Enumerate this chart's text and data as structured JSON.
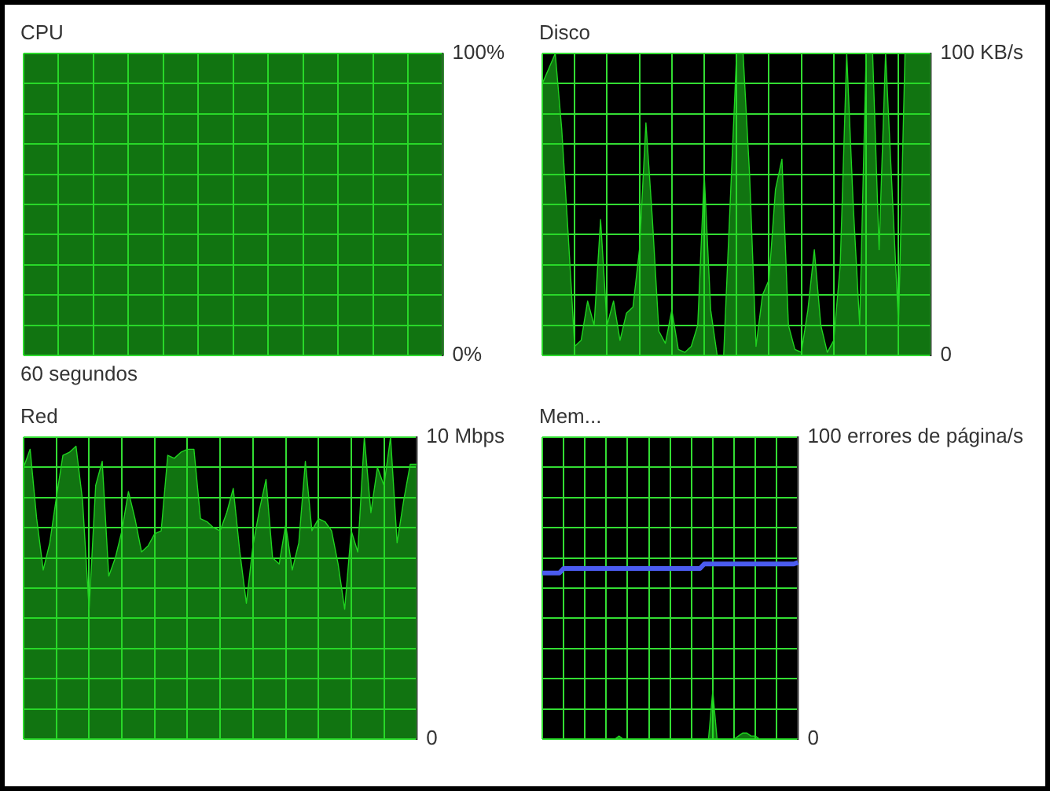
{
  "chart_data": [
    {
      "type": "area",
      "title": "CPU",
      "xlabel": "60 segundos",
      "categories": [
        null,
        null,
        null,
        null,
        null,
        null,
        null,
        null,
        null,
        null,
        null,
        null,
        null,
        null,
        null,
        null,
        null,
        null,
        null,
        null,
        null,
        null,
        null,
        null,
        null,
        null,
        null,
        null,
        null,
        null,
        null,
        null,
        null,
        null,
        null,
        null,
        null,
        null,
        null,
        null,
        null,
        null,
        null,
        null,
        null,
        null,
        null,
        null,
        null,
        null,
        null,
        null,
        null,
        null,
        null,
        null,
        null,
        null,
        null,
        null,
        null
      ],
      "ylim": [
        0,
        100
      ],
      "yticks": [
        {
          "value": 0,
          "label": "0%"
        },
        {
          "value": 10,
          "label": null
        },
        {
          "value": 20,
          "label": null
        },
        {
          "value": 30,
          "label": null
        },
        {
          "value": 40,
          "label": null
        },
        {
          "value": 50,
          "label": null
        },
        {
          "value": 60,
          "label": null
        },
        {
          "value": 70,
          "label": null
        },
        {
          "value": 80,
          "label": null
        },
        {
          "value": 90,
          "label": null
        },
        {
          "value": 100,
          "label": "100%"
        }
      ],
      "grid": true,
      "tick_labels": "y",
      "series": [
        {
          "color": "#1fd41f",
          "values": [
            100,
            100,
            100,
            100,
            100,
            100,
            100,
            100,
            100,
            100,
            100,
            100,
            100,
            100,
            100,
            100,
            100,
            100,
            100,
            100,
            100,
            100,
            100,
            100,
            100,
            100,
            100,
            100,
            100,
            100,
            100,
            100,
            100,
            100,
            100,
            100,
            100,
            100,
            100,
            100,
            100,
            100,
            100,
            100,
            100,
            100,
            100,
            100,
            100,
            100,
            100,
            100,
            100,
            100,
            100,
            100,
            100,
            100,
            100,
            100,
            100
          ]
        }
      ]
    },
    {
      "type": "area",
      "title": "Disco",
      "categories": [
        null,
        null,
        null,
        null,
        null,
        null,
        null,
        null,
        null,
        null,
        null,
        null,
        null,
        null,
        null,
        null,
        null,
        null,
        null,
        null,
        null,
        null,
        null,
        null,
        null,
        null,
        null,
        null,
        null,
        null,
        null,
        null,
        null,
        null,
        null,
        null,
        null,
        null,
        null,
        null,
        null,
        null,
        null,
        null,
        null,
        null,
        null,
        null,
        null,
        null,
        null,
        null,
        null,
        null,
        null,
        null,
        null,
        null,
        null,
        null,
        null
      ],
      "ylim": [
        0,
        100
      ],
      "yticks": [
        {
          "value": 0,
          "label": "0"
        },
        {
          "value": 10,
          "label": null
        },
        {
          "value": 20,
          "label": null
        },
        {
          "value": 30,
          "label": null
        },
        {
          "value": 40,
          "label": null
        },
        {
          "value": 50,
          "label": null
        },
        {
          "value": 60,
          "label": null
        },
        {
          "value": 70,
          "label": null
        },
        {
          "value": 80,
          "label": null
        },
        {
          "value": 90,
          "label": null
        },
        {
          "value": 100,
          "label": "100 KB/s"
        }
      ],
      "grid": true,
      "tick_labels": "y",
      "series": [
        {
          "color": "#1fd41f",
          "values": [
            90,
            95,
            100,
            75,
            40,
            3,
            5,
            18,
            10,
            45,
            10,
            18,
            5,
            14,
            16,
            35,
            77,
            45,
            8,
            4,
            15,
            2,
            1,
            3,
            10,
            60,
            15,
            0,
            0,
            50,
            100,
            100,
            60,
            3,
            20,
            25,
            55,
            65,
            10,
            2,
            1,
            15,
            35,
            10,
            1,
            5,
            30,
            100,
            50,
            10,
            100,
            100,
            35,
            100,
            55,
            10,
            100,
            100,
            100,
            100,
            100
          ]
        }
      ]
    },
    {
      "type": "area",
      "title": "Red",
      "categories": [
        null,
        null,
        null,
        null,
        null,
        null,
        null,
        null,
        null,
        null,
        null,
        null,
        null,
        null,
        null,
        null,
        null,
        null,
        null,
        null,
        null,
        null,
        null,
        null,
        null,
        null,
        null,
        null,
        null,
        null,
        null,
        null,
        null,
        null,
        null,
        null,
        null,
        null,
        null,
        null,
        null,
        null,
        null,
        null,
        null,
        null,
        null,
        null,
        null,
        null,
        null,
        null,
        null,
        null,
        null,
        null,
        null,
        null,
        null,
        null,
        null
      ],
      "ylim": [
        0,
        10
      ],
      "yticks": [
        {
          "value": 0,
          "label": "0"
        },
        {
          "value": 1,
          "label": null
        },
        {
          "value": 2,
          "label": null
        },
        {
          "value": 3,
          "label": null
        },
        {
          "value": 4,
          "label": null
        },
        {
          "value": 5,
          "label": null
        },
        {
          "value": 6,
          "label": null
        },
        {
          "value": 7,
          "label": null
        },
        {
          "value": 8,
          "label": null
        },
        {
          "value": 9,
          "label": null
        },
        {
          "value": 10,
          "label": "10 Mbps"
        }
      ],
      "grid": true,
      "tick_labels": "y",
      "series": [
        {
          "color": "#1fd41f",
          "values": [
            9,
            9.6,
            7.3,
            5.6,
            6.5,
            8,
            9.4,
            9.5,
            9.7,
            7.9,
            4.3,
            8.4,
            9.2,
            5.4,
            6,
            6.9,
            8.2,
            7.3,
            6.2,
            6.4,
            6.8,
            6.9,
            9.4,
            9.3,
            9.5,
            9.6,
            9.6,
            7.3,
            7.2,
            7,
            6.9,
            7.5,
            8.3,
            6.2,
            4.5,
            6.4,
            7.6,
            8.6,
            6,
            5.8,
            7.1,
            5.6,
            6.5,
            9.2,
            6.9,
            7.3,
            7.2,
            6.9,
            5.8,
            4.3,
            6.9,
            6.2,
            10,
            7.5,
            9,
            8.4,
            10,
            6.5,
            7.9,
            9.1,
            9.1
          ]
        }
      ]
    },
    {
      "type": "area",
      "title": "Mem...",
      "categories": [
        null,
        null,
        null,
        null,
        null,
        null,
        null,
        null,
        null,
        null,
        null,
        null,
        null,
        null,
        null,
        null,
        null,
        null,
        null,
        null,
        null,
        null,
        null,
        null,
        null,
        null,
        null,
        null,
        null,
        null,
        null,
        null,
        null,
        null,
        null,
        null,
        null,
        null,
        null,
        null,
        null,
        null,
        null,
        null,
        null,
        null,
        null,
        null,
        null,
        null,
        null,
        null,
        null,
        null,
        null,
        null,
        null,
        null,
        null,
        null,
        null
      ],
      "ylim": [
        0,
        100
      ],
      "yticks": [
        {
          "value": 0,
          "label": "0"
        },
        {
          "value": 10,
          "label": null
        },
        {
          "value": 20,
          "label": null
        },
        {
          "value": 30,
          "label": null
        },
        {
          "value": 40,
          "label": null
        },
        {
          "value": 50,
          "label": null
        },
        {
          "value": 60,
          "label": null
        },
        {
          "value": 70,
          "label": null
        },
        {
          "value": 80,
          "label": null
        },
        {
          "value": 90,
          "label": null
        },
        {
          "value": 100,
          "label": "100 errores de página/s"
        }
      ],
      "grid": true,
      "tick_labels": "y",
      "series": [
        {
          "color": "#1fd41f",
          "values": [
            0,
            0,
            0,
            0,
            0,
            0,
            0,
            0,
            0,
            0,
            0,
            0,
            0,
            0,
            0,
            0,
            0,
            0,
            1,
            0,
            0,
            0,
            0,
            0,
            0,
            0,
            0,
            0,
            0,
            0,
            0,
            0,
            0,
            0,
            0,
            0,
            0,
            0,
            0,
            0,
            16,
            0,
            0,
            0,
            0,
            0,
            1,
            2,
            2,
            1,
            1,
            0,
            0,
            0,
            0,
            0,
            0,
            0,
            0,
            0,
            0
          ]
        },
        {
          "type": "line",
          "color": "#4b5cf0",
          "values": [
            55,
            55,
            55,
            55,
            55,
            56.5,
            56.5,
            56.5,
            56.5,
            56.5,
            56.5,
            56.5,
            56.5,
            56.5,
            56.5,
            56.5,
            56.5,
            56.5,
            56.5,
            56.5,
            56.5,
            56.5,
            56.5,
            56.5,
            56.5,
            56.5,
            56.5,
            56.5,
            56.5,
            56.5,
            56.5,
            56.5,
            56.5,
            56.5,
            56.5,
            56.5,
            56.5,
            56.5,
            58,
            58,
            58,
            58,
            58,
            58,
            58,
            58,
            58,
            58,
            58,
            58,
            58,
            58,
            58,
            58,
            58,
            58,
            58,
            58,
            58,
            58,
            58.5
          ]
        }
      ]
    }
  ]
}
